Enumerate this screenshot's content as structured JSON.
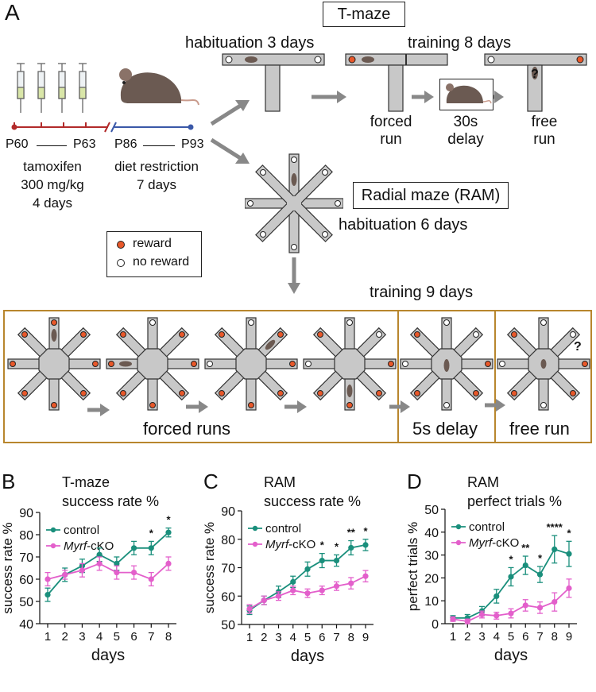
{
  "panel_a": {
    "label": "A",
    "timeline": {
      "p60": "P60",
      "p63": "P63",
      "p86": "P86",
      "p93": "P93",
      "tamoxifen": [
        "tamoxifen",
        "300 mg/kg",
        "4 days"
      ],
      "diet": [
        "diet restriction",
        "7 days"
      ]
    },
    "tmaze": {
      "title": "T-maze",
      "habituation": "habituation 3 days",
      "training": "training 8 days",
      "forced_run": [
        "forced",
        "run"
      ],
      "delay": [
        "30s",
        "delay"
      ],
      "free_run": [
        "free",
        "run"
      ],
      "question": "?"
    },
    "ram": {
      "title": "Radial maze (RAM)",
      "habituation": "habituation 6 days",
      "training": "training 9 days",
      "forced_runs": "forced runs",
      "delay": "5s delay",
      "free_run": "free run",
      "question": "?"
    },
    "legend": {
      "reward": "reward",
      "no_reward": "no reward"
    },
    "colors": {
      "reward": "#e8582a",
      "maze": "#c8c8c8",
      "box": "#b8862d",
      "arrow": "#888888",
      "red_line": "#b22a2a",
      "blue_line": "#3a58a8"
    }
  },
  "colors": {
    "control": "#1a8f7c",
    "cko": "#e35fcb"
  },
  "chart_data": [
    {
      "panel": "B",
      "type": "line",
      "title": [
        "T-maze",
        "success rate %"
      ],
      "xlabel": "days",
      "ylabel": "success rate %",
      "x": [
        1,
        2,
        3,
        4,
        5,
        6,
        7,
        8
      ],
      "xticks": [
        "1",
        "2",
        "3",
        "4",
        "5",
        "6",
        "7",
        "8"
      ],
      "ylim": [
        40,
        90
      ],
      "yticks": [
        "40",
        "50",
        "60",
        "70",
        "80",
        "90"
      ],
      "legend": [
        "control",
        "Myrf-cKO"
      ],
      "series": [
        {
          "name": "control",
          "values": [
            53,
            62,
            66,
            71,
            67,
            74,
            74,
            81
          ],
          "errors": [
            3,
            3,
            3,
            3,
            3,
            3,
            3,
            2
          ]
        },
        {
          "name": "Myrf-cKO",
          "values": [
            60,
            62,
            64,
            67,
            63,
            63,
            60,
            67
          ],
          "errors": [
            3,
            2,
            3,
            3,
            3,
            3,
            3,
            3
          ]
        }
      ],
      "significance": [
        {
          "x": 7,
          "label": "*"
        },
        {
          "x": 8,
          "label": "*"
        }
      ]
    },
    {
      "panel": "C",
      "type": "line",
      "title": [
        "RAM",
        "success rate %"
      ],
      "xlabel": "days",
      "ylabel": "success rate %",
      "x": [
        1,
        2,
        3,
        4,
        5,
        6,
        7,
        8,
        9
      ],
      "xticks": [
        "1",
        "2",
        "3",
        "4",
        "5",
        "6",
        "7",
        "8",
        "9"
      ],
      "ylim": [
        50,
        90
      ],
      "yticks": [
        "50",
        "60",
        "70",
        "80",
        "90"
      ],
      "legend": [
        "control",
        "Myrf-cKO"
      ],
      "series": [
        {
          "name": "control",
          "values": [
            55,
            58.5,
            61.5,
            65,
            69.5,
            72.5,
            72.5,
            77,
            78
          ],
          "errors": [
            1.5,
            1.5,
            2,
            2,
            2.5,
            2.5,
            2,
            2.5,
            2
          ]
        },
        {
          "name": "Myrf-cKO",
          "values": [
            55.5,
            58.5,
            60,
            62,
            61,
            62,
            63.5,
            64.5,
            67
          ],
          "errors": [
            1.5,
            1.5,
            1.5,
            1.5,
            1.5,
            1.5,
            1.5,
            2,
            2
          ]
        }
      ],
      "significance": [
        {
          "x": 6,
          "label": "*"
        },
        {
          "x": 7,
          "label": "*"
        },
        {
          "x": 8,
          "label": "**"
        },
        {
          "x": 9,
          "label": "*"
        }
      ]
    },
    {
      "panel": "D",
      "type": "line",
      "title": [
        "RAM",
        "perfect trials %"
      ],
      "xlabel": "days",
      "ylabel": "perfect trials %",
      "x": [
        1,
        2,
        3,
        4,
        5,
        6,
        7,
        8,
        9
      ],
      "xticks": [
        "1",
        "2",
        "3",
        "4",
        "5",
        "6",
        "7",
        "8",
        "9"
      ],
      "ylim": [
        0,
        50
      ],
      "yticks": [
        "0",
        "10",
        "20",
        "30",
        "40",
        "50"
      ],
      "legend": [
        "control",
        "Myrf-cKO"
      ],
      "series": [
        {
          "name": "control",
          "values": [
            2.5,
            2.5,
            5.5,
            12,
            20.5,
            25.5,
            21.5,
            32.5,
            30.5
          ],
          "errors": [
            1,
            1.5,
            2,
            3,
            4,
            4,
            3.5,
            6,
            5.5
          ]
        },
        {
          "name": "Myrf-cKO",
          "values": [
            2,
            1,
            4,
            3.5,
            4.5,
            8,
            7,
            9.5,
            15.5
          ],
          "errors": [
            1,
            1,
            1.5,
            1.5,
            2,
            2.5,
            2.5,
            4,
            4
          ]
        }
      ],
      "significance": [
        {
          "x": 5,
          "label": "*"
        },
        {
          "x": 6,
          "label": "**"
        },
        {
          "x": 7,
          "label": "*"
        },
        {
          "x": 8,
          "label": "****"
        },
        {
          "x": 9,
          "label": "*"
        }
      ]
    }
  ]
}
